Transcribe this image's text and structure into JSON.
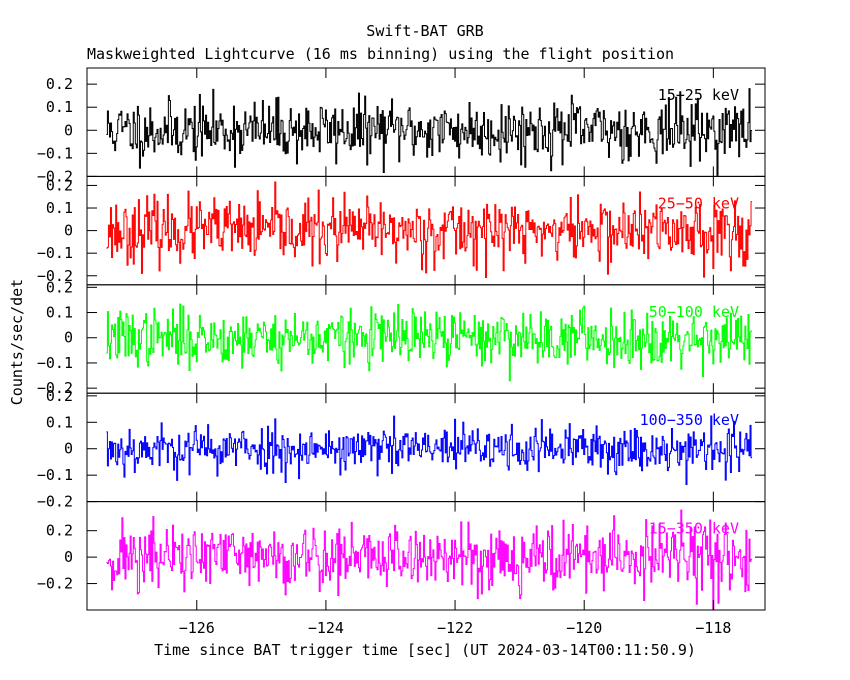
{
  "title": "Swift-BAT GRB",
  "subtitle": "Maskweighted Lightcurve (16 ms binning) using the flight position",
  "chart_data": {
    "type": "line",
    "xlabel": "Time since BAT trigger time [sec] (UT 2024-03-14T00:11:50.9)",
    "ylabel": "Counts/sec/det",
    "xlim": [
      -127.7,
      -117.2
    ],
    "x_ticks": [
      -126,
      -124,
      -122,
      -120,
      -118
    ],
    "x_tick_labels": [
      "−126",
      "−124",
      "−122",
      "−120",
      "−118"
    ],
    "x_start": -127.4,
    "x_end": -117.4,
    "bin_width": 0.016,
    "panels": [
      {
        "label": "15−25 keV",
        "color": "#000000",
        "ylim": [
          -0.2,
          0.27
        ],
        "y_ticks": [
          -0.2,
          -0.1,
          0,
          0.1,
          0.2
        ],
        "y_tick_labels": [
          "−0.2",
          "−0.1",
          "0",
          "0.1",
          "0.2"
        ],
        "noise_sigma": 0.065,
        "seed": 11
      },
      {
        "label": "25−50 keV",
        "color": "#ff0000",
        "ylim": [
          -0.24,
          0.24
        ],
        "y_ticks": [
          -0.2,
          -0.1,
          0,
          0.1,
          0.2
        ],
        "y_tick_labels": [
          "−0.2",
          "−0.1",
          "0",
          "0.1",
          "0.2"
        ],
        "noise_sigma": 0.07,
        "seed": 23
      },
      {
        "label": "50−100 keV",
        "color": "#00ff00",
        "ylim": [
          -0.22,
          0.21
        ],
        "y_ticks": [
          -0.2,
          -0.1,
          0,
          0.1,
          0.2
        ],
        "y_tick_labels": [
          "−0.2",
          "−0.1",
          "0",
          "0.1",
          "0.2"
        ],
        "noise_sigma": 0.055,
        "seed": 37
      },
      {
        "label": "100−350 keV",
        "color": "#0000ff",
        "ylim": [
          -0.2,
          0.21
        ],
        "y_ticks": [
          -0.2,
          -0.1,
          0,
          0.1,
          0.2
        ],
        "y_tick_labels": [
          "−0.2",
          "−0.1",
          "0",
          "0.1",
          "0.2"
        ],
        "noise_sigma": 0.045,
        "seed": 53
      },
      {
        "label": "15−350 keV",
        "color": "#ff00ff",
        "ylim": [
          -0.4,
          0.42
        ],
        "y_ticks": [
          -0.2,
          0,
          0.2
        ],
        "y_tick_labels": [
          "−0.2",
          "0",
          "0.2"
        ],
        "noise_sigma": 0.13,
        "seed": 71
      }
    ]
  }
}
